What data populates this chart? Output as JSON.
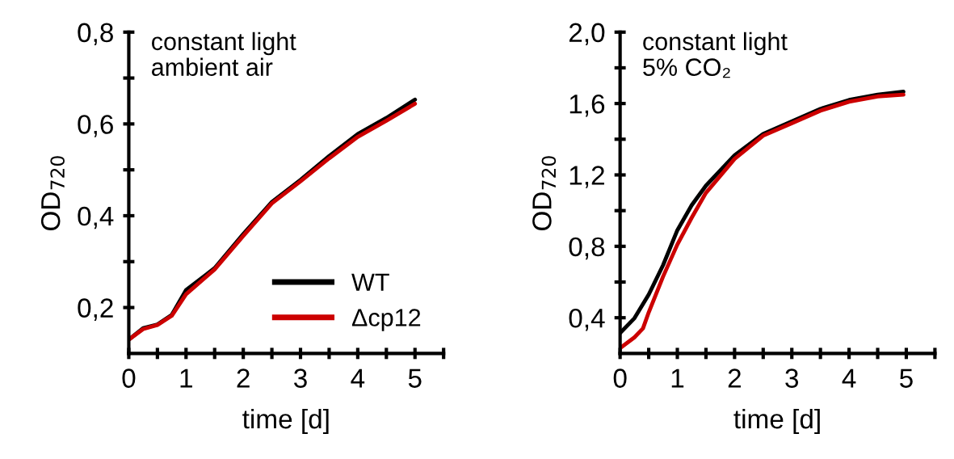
{
  "chart_data": [
    {
      "type": "line",
      "xlabel": "time [d]",
      "ylabel": "OD$_{720}$",
      "annotations": [
        "constant light\nambient air"
      ],
      "xlim": [
        0,
        5.5
      ],
      "ylim": [
        0.1,
        0.8
      ],
      "xticks": [
        0,
        {
          "value": 0.5,
          "label": null
        },
        1,
        {
          "value": 1.5,
          "label": null
        },
        2,
        {
          "value": 2.5,
          "label": null
        },
        3,
        {
          "value": 3.5,
          "label": null
        },
        4,
        {
          "value": 4.5,
          "label": null
        },
        5,
        {
          "value": 5.5,
          "label": null
        }
      ],
      "yticks": [
        {
          "value": 0.2,
          "label": "0,2"
        },
        {
          "value": 0.3,
          "label": null
        },
        {
          "value": 0.4,
          "label": "0,4"
        },
        {
          "value": 0.5,
          "label": null
        },
        {
          "value": 0.6,
          "label": "0,6"
        },
        {
          "value": 0.7,
          "label": null
        },
        {
          "value": 0.8,
          "label": "0,8"
        }
      ],
      "grid": false,
      "legend": "bottom right",
      "line_style": "solid",
      "marker": "none",
      "series": [
        {
          "name": "WT",
          "color": "#000000",
          "x": [
            0,
            0.25,
            0.5,
            0.75,
            1,
            1.5,
            2,
            2.5,
            3,
            3.5,
            4,
            4.5,
            5
          ],
          "values": [
            0.13,
            0.155,
            0.163,
            0.184,
            0.238,
            0.286,
            0.36,
            0.43,
            0.478,
            0.53,
            0.578,
            0.613,
            0.653
          ]
        },
        {
          "name": "Δcp12",
          "color": "#cc0000",
          "x": [
            0,
            0.25,
            0.5,
            0.75,
            1,
            1.5,
            2,
            2.5,
            3,
            3.5,
            4,
            4.5,
            5
          ],
          "values": [
            0.13,
            0.153,
            0.162,
            0.182,
            0.229,
            0.283,
            0.356,
            0.427,
            0.475,
            0.525,
            0.572,
            0.607,
            0.644
          ]
        }
      ]
    },
    {
      "type": "line",
      "xlabel": "time [d]",
      "ylabel": "OD$_{720}$",
      "annotations": [
        "constant light\n5% CO₂"
      ],
      "xlim": [
        0,
        5.5
      ],
      "ylim": [
        0.2,
        2.0
      ],
      "xticks": [
        0,
        {
          "value": 0.5,
          "label": null
        },
        1,
        {
          "value": 1.5,
          "label": null
        },
        2,
        {
          "value": 2.5,
          "label": null
        },
        3,
        {
          "value": 3.5,
          "label": null
        },
        4,
        {
          "value": 4.5,
          "label": null
        },
        5,
        {
          "value": 5.5,
          "label": null
        }
      ],
      "yticks": [
        {
          "value": 0.4,
          "label": "0,4"
        },
        {
          "value": 0.6,
          "label": null
        },
        {
          "value": 0.8,
          "label": "0,8"
        },
        {
          "value": 1.0,
          "label": null
        },
        {
          "value": 1.2,
          "label": "1,2"
        },
        {
          "value": 1.4,
          "label": null
        },
        {
          "value": 1.6,
          "label": "1,6"
        },
        {
          "value": 1.8,
          "label": null
        },
        {
          "value": 2.0,
          "label": "2,0"
        }
      ],
      "grid": false,
      "line_style": "solid",
      "marker": "none",
      "series": [
        {
          "color": "#000000",
          "x": [
            0,
            0.25,
            0.5,
            0.75,
            1,
            1.25,
            1.5,
            2,
            2.5,
            3,
            3.5,
            4,
            4.5,
            4.95
          ],
          "values": [
            0.314,
            0.397,
            0.53,
            0.694,
            0.89,
            1.03,
            1.14,
            1.31,
            1.43,
            1.5,
            1.57,
            1.62,
            1.65,
            1.666
          ]
        },
        {
          "color": "#cc0000",
          "x": [
            0,
            0.25,
            0.4,
            0.5,
            0.75,
            1,
            1.25,
            1.5,
            2,
            2.5,
            3,
            3.5,
            4,
            4.5,
            4.95
          ],
          "values": [
            0.23,
            0.29,
            0.34,
            0.43,
            0.63,
            0.81,
            0.96,
            1.1,
            1.29,
            1.42,
            1.49,
            1.56,
            1.61,
            1.64,
            1.65
          ]
        }
      ]
    }
  ]
}
